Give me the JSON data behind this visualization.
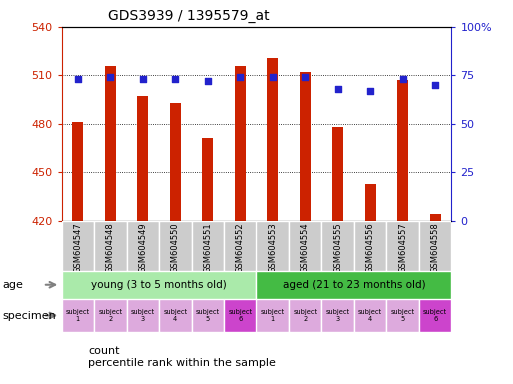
{
  "title": "GDS3939 / 1395579_at",
  "samples": [
    "GSM604547",
    "GSM604548",
    "GSM604549",
    "GSM604550",
    "GSM604551",
    "GSM604552",
    "GSM604553",
    "GSM604554",
    "GSM604555",
    "GSM604556",
    "GSM604557",
    "GSM604558"
  ],
  "counts": [
    481,
    516,
    497,
    493,
    471,
    516,
    521,
    512,
    478,
    443,
    507,
    424
  ],
  "percentile_ranks": [
    73,
    74,
    73,
    73,
    72,
    74,
    74,
    74,
    68,
    67,
    73,
    70
  ],
  "ylim_left": [
    420,
    540
  ],
  "ylim_right": [
    0,
    100
  ],
  "yticks_left": [
    420,
    450,
    480,
    510,
    540
  ],
  "yticks_right": [
    0,
    25,
    50,
    75,
    100
  ],
  "bar_color": "#cc2200",
  "dot_color": "#2222cc",
  "bar_base": 420,
  "groups": [
    {
      "label": "young (3 to 5 months old)",
      "start": 0,
      "end": 6,
      "color": "#aaeaaa"
    },
    {
      "label": "aged (21 to 23 months old)",
      "start": 6,
      "end": 12,
      "color": "#44bb44"
    }
  ],
  "subjects": [
    "subject\n1",
    "subject\n2",
    "subject\n3",
    "subject\n4",
    "subject\n5",
    "subject\n6",
    "subject\n1",
    "subject\n2",
    "subject\n3",
    "subject\n4",
    "subject\n5",
    "subject\n6"
  ],
  "subject_colors_light": "#ddaadd",
  "subject_colors_dark": "#cc44cc",
  "subject_dark_indices": [
    5,
    11
  ],
  "tick_label_bg": "#cccccc",
  "left_axis_color": "#cc2200",
  "right_axis_color": "#2222cc",
  "fig_width": 5.13,
  "fig_height": 3.84,
  "dpi": 100
}
